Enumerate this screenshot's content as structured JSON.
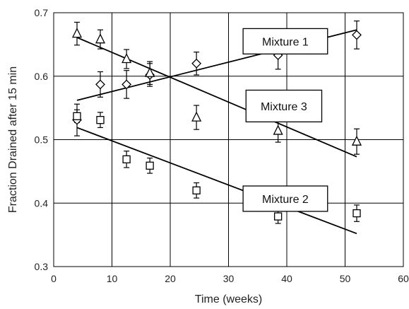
{
  "chart_data": {
    "type": "scatter",
    "title": "",
    "xlabel": "Time (weeks)",
    "ylabel": "Fraction Drained after 15 min",
    "xlim": [
      0,
      60
    ],
    "ylim": [
      0.3,
      0.7
    ],
    "x_ticks": [
      0,
      10,
      20,
      30,
      40,
      50,
      60
    ],
    "y_ticks": [
      0.3,
      0.4,
      0.5,
      0.6,
      0.7
    ],
    "x_tick_labels": [
      "0",
      "10",
      "20",
      "30",
      "40",
      "50",
      "60"
    ],
    "y_tick_labels": [
      "0.3",
      "0.4",
      "0.5",
      "0.6",
      "0.7"
    ],
    "grid": true,
    "series": [
      {
        "name": "Mixture 1",
        "marker": "diamond",
        "x": [
          4,
          8,
          12.5,
          16.5,
          24.5,
          38.5,
          52
        ],
        "y": [
          0.531,
          0.587,
          0.587,
          0.602,
          0.62,
          0.633,
          0.665
        ],
        "error": [
          0.025,
          0.02,
          0.022,
          0.018,
          0.018,
          0.022,
          0.022
        ],
        "trend": {
          "x": [
            4,
            52
          ],
          "y": [
            0.562,
            0.673
          ]
        }
      },
      {
        "name": "Mixture 2",
        "marker": "square",
        "x": [
          4,
          8,
          12.5,
          16.5,
          24.5,
          38.5,
          52
        ],
        "y": [
          0.537,
          0.531,
          0.469,
          0.459,
          0.42,
          0.379,
          0.384
        ],
        "error": [
          0.01,
          0.012,
          0.013,
          0.012,
          0.012,
          0.011,
          0.013
        ],
        "trend": {
          "x": [
            4,
            52
          ],
          "y": [
            0.519,
            0.352
          ]
        }
      },
      {
        "name": "Mixture 3",
        "marker": "triangle",
        "x": [
          4,
          8,
          12.5,
          16.5,
          24.5,
          38.5,
          52
        ],
        "y": [
          0.667,
          0.658,
          0.627,
          0.605,
          0.535,
          0.514,
          0.497
        ],
        "error": [
          0.018,
          0.015,
          0.015,
          0.018,
          0.019,
          0.018,
          0.02
        ],
        "trend": {
          "x": [
            4,
            52
          ],
          "y": [
            0.661,
            0.473
          ]
        }
      }
    ],
    "annotations": [
      {
        "text": "Mixture 1",
        "box_x": [
          32.5,
          47
        ],
        "box_y": [
          0.635,
          0.675
        ]
      },
      {
        "text": "Mixture 3",
        "box_x": [
          33,
          46
        ],
        "box_y": [
          0.528,
          0.578
        ]
      },
      {
        "text": "Mixture 2",
        "box_x": [
          32.5,
          47
        ],
        "box_y": [
          0.387,
          0.427
        ]
      }
    ]
  }
}
